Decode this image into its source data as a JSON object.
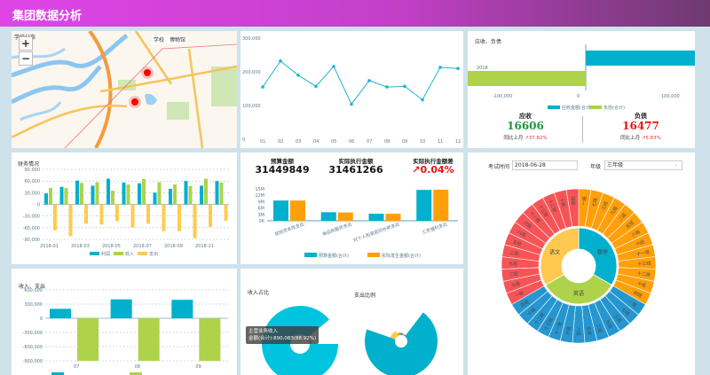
{
  "header": {
    "title": "集团数据分析"
  },
  "map": {
    "title": "学校分布",
    "zoom_in": "+",
    "zoom_out": "−",
    "layers": [
      "学校",
      "博物馆"
    ],
    "marker_color": "#ff0000"
  },
  "line_chart": {
    "chart_data": {
      "type": "line",
      "categories": [
        "01",
        "02",
        "03",
        "04",
        "05",
        "06",
        "07",
        "08",
        "09",
        "10",
        "11",
        "12"
      ],
      "values": [
        155000,
        232000,
        190000,
        157000,
        216000,
        104000,
        174000,
        155000,
        157000,
        117000,
        213000,
        210000
      ],
      "ylim": [
        0,
        300000
      ],
      "yticks": [
        "300,000",
        "200,000",
        "100,000",
        "0"
      ],
      "color": "#1fb5cf"
    }
  },
  "receivable": {
    "title": "应收、负债",
    "chart_data": {
      "type": "bar",
      "orientation": "horizontal",
      "categories": [
        "2018"
      ],
      "series": [
        {
          "name": "应收金额(合计)",
          "values": [
            190000
          ],
          "color": "#00b0cc"
        },
        {
          "name": "负债(合计)",
          "values": [
            -178000
          ],
          "color": "#aed24a"
        }
      ],
      "xlim": [
        -200000,
        200000
      ],
      "xticks": [
        "-200,000",
        "-100,000",
        "0",
        "100,000",
        "200,000"
      ]
    },
    "kpis": [
      {
        "label": "应收",
        "value": "16606",
        "compare": "同比上月",
        "change": "↗37.82%",
        "color": "#1a9a3a"
      },
      {
        "label": "负债",
        "value": "16477",
        "compare": "同比上月",
        "change": "↗5.83%",
        "color": "#ee1111"
      }
    ]
  },
  "finance": {
    "title": "财务情况",
    "chart_data": {
      "type": "bar",
      "categories": [
        "2018-01",
        "2018-02",
        "2018-03",
        "2018-04",
        "2018-05",
        "2018-06",
        "2018-07",
        "2018-08",
        "2018-09",
        "2018-10",
        "2018-11",
        "2018-12"
      ],
      "xtick_labels": [
        "2018-01",
        "2018-03",
        "2018-05",
        "2018-07",
        "2018-09",
        "2018-11"
      ],
      "series": [
        {
          "name": "利润",
          "values": [
            28000,
            45000,
            61000,
            48000,
            66000,
            56000,
            54000,
            30000,
            40000,
            60000,
            48000,
            60000
          ],
          "color": "#00b0cc"
        },
        {
          "name": "收入",
          "values": [
            42000,
            42000,
            55000,
            57000,
            35000,
            51000,
            65000,
            57000,
            51000,
            47000,
            66000,
            56000
          ],
          "color": "#aed24a"
        },
        {
          "name": "支出",
          "values": [
            -67000,
            -82000,
            -50000,
            -52000,
            -43000,
            -59000,
            -50000,
            -69000,
            -69000,
            -87000,
            -58000,
            -42000
          ],
          "color": "#ffcb4f"
        }
      ],
      "ylim": [
        -90000,
        90000
      ],
      "yticks": [
        "90,000",
        "60,000",
        "30,000",
        "0",
        "-30,000",
        "-60,000",
        "-90,000"
      ],
      "grid": true,
      "legend": "bottom"
    }
  },
  "budget": {
    "kpis": [
      {
        "label": "预算金额",
        "value": "31449849"
      },
      {
        "label": "实际执行金额",
        "value": "31461266"
      },
      {
        "label": "实际执行金额差",
        "value": "↗0.04%",
        "color": "#ee1111"
      }
    ],
    "chart_data": {
      "type": "bar",
      "categories": [
        "其他资本性支出",
        "商品和服务支出",
        "对个人和家庭的补助支出",
        "工资福利支出"
      ],
      "series": [
        {
          "name": "预算金额(合计)",
          "values": [
            9500000,
            4000000,
            3300000,
            14500000
          ],
          "color": "#00b0cc"
        },
        {
          "name": "实际发生金额(合计)",
          "values": [
            9500000,
            3900000,
            3300000,
            14600000
          ],
          "color": "#ff9f0a"
        }
      ],
      "ylim": [
        0,
        15000000
      ],
      "yticks": [
        "15M",
        "12M",
        "9M",
        "6M",
        "3M",
        "0K"
      ],
      "legend": "bottom"
    }
  },
  "exam": {
    "date_label": "考试时间",
    "date_value": "2018-06-28",
    "grade_label": "年级",
    "grade_value": "三年级",
    "chart_data": {
      "type": "sunburst",
      "subjects": [
        {
          "name": "数学",
          "color": "#00b0cc",
          "outer_color": "#ff9f0a"
        },
        {
          "name": "英语",
          "color": "#aed24a",
          "outer_color": "#2596cf"
        },
        {
          "name": "语文",
          "color": "#ffc94f",
          "outer_color": "#f75458"
        }
      ],
      "classes": [
        "一班",
        "七班",
        "三班",
        "九班",
        "二班",
        "五班",
        "八班",
        "六班",
        "十一班",
        "十三班",
        "十二班",
        "十班",
        "四班"
      ]
    }
  },
  "income_expense": {
    "title": "收入、支出",
    "chart_data": {
      "type": "bar",
      "categories": [
        "07",
        "08",
        "09"
      ],
      "series": [
        {
          "values": [
            200000,
            400000,
            390000
          ],
          "color": "#00b0cc"
        },
        {
          "values": [
            -900000,
            -900000,
            -900000
          ],
          "color": "#aed24a"
        }
      ],
      "ylim": [
        -900000,
        600000
      ],
      "yticks": [
        "600,000",
        "300,000",
        "0",
        "-300,000",
        "-600,000",
        "-900,000"
      ],
      "grid": true
    }
  },
  "pies": {
    "income_title": "收入占比",
    "expense_title": "支出比例",
    "tooltip": {
      "name": "主营业务收入",
      "value": "金额(合计):890,083(88.92%)"
    },
    "income_chart": {
      "type": "pie",
      "values": [
        88.92,
        6,
        5.08
      ],
      "colors": [
        "#00c3e0",
        "#aed24a",
        "#ff9f0a"
      ]
    },
    "expense_chart": {
      "type": "pie",
      "rose": true,
      "values": [
        70,
        12,
        6,
        5,
        4,
        3
      ],
      "colors": [
        "#00b0cc",
        "#ffc94f",
        "#ff9f0a",
        "#2596cf",
        "#aed24a",
        "#f75458"
      ]
    }
  }
}
